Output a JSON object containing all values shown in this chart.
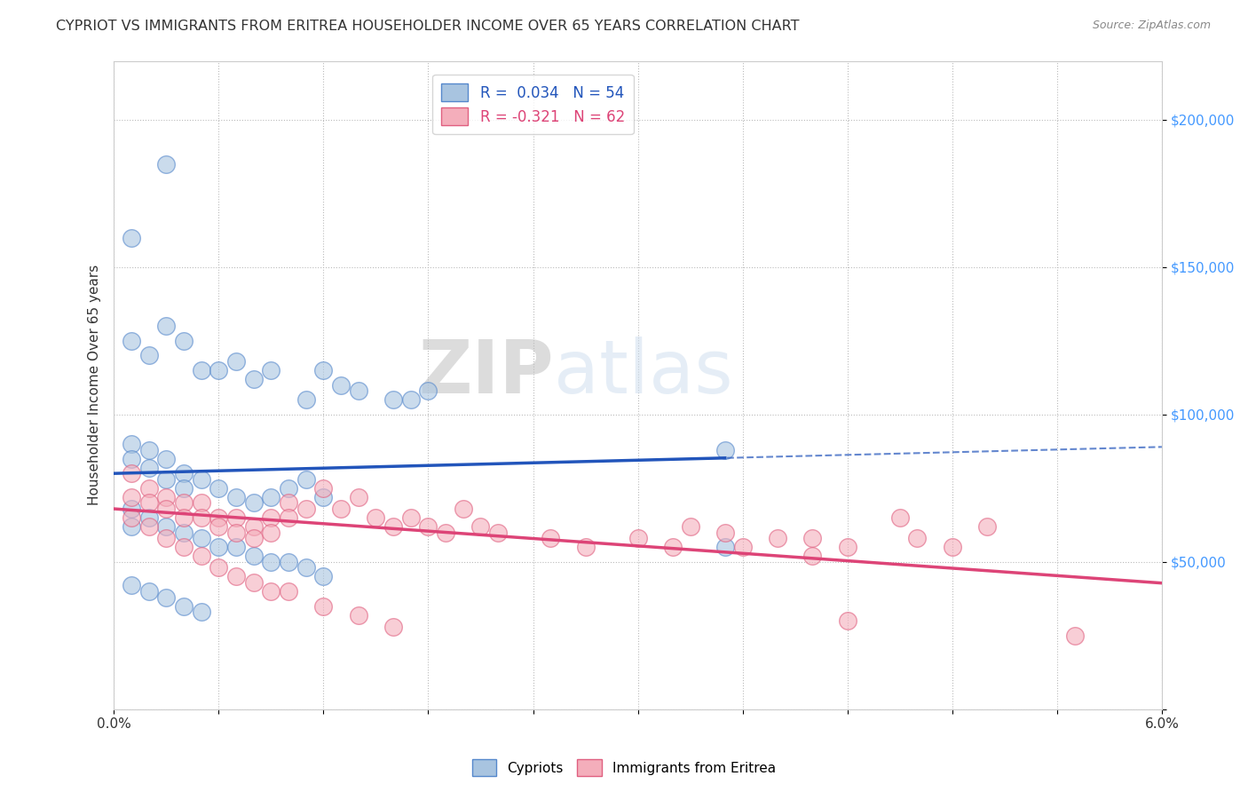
{
  "title": "CYPRIOT VS IMMIGRANTS FROM ERITREA HOUSEHOLDER INCOME OVER 65 YEARS CORRELATION CHART",
  "source": "Source: ZipAtlas.com",
  "ylabel": "Householder Income Over 65 years",
  "xlim": [
    0.0,
    0.06
  ],
  "ylim": [
    0,
    220000
  ],
  "xticks": [
    0.0,
    0.006,
    0.012,
    0.018,
    0.024,
    0.03,
    0.036,
    0.042,
    0.048,
    0.054,
    0.06
  ],
  "xticklabels": [
    "0.0%",
    "",
    "",
    "",
    "",
    "",
    "",
    "",
    "",
    "",
    "6.0%"
  ],
  "ytick_positions": [
    0,
    50000,
    100000,
    150000,
    200000
  ],
  "ytick_labels": [
    "",
    "$50,000",
    "$100,000",
    "$150,000",
    "$200,000"
  ],
  "legend_blue_text": "R =  0.034   N = 54",
  "legend_pink_text": "R = -0.321   N = 62",
  "blue_color": "#A8C4E0",
  "pink_color": "#F4AEBB",
  "blue_edge_color": "#5588CC",
  "pink_edge_color": "#E06080",
  "blue_line_color": "#2255BB",
  "pink_line_color": "#DD4477",
  "watermark_zip": "ZIP",
  "watermark_atlas": "atlas",
  "blue_line_solid_end": 0.035,
  "blue_intercept": 80000,
  "blue_slope": 150000,
  "pink_intercept": 68000,
  "pink_slope": -420000,
  "blue_scatter_x": [
    0.001,
    0.003,
    0.001,
    0.002,
    0.003,
    0.004,
    0.005,
    0.006,
    0.007,
    0.008,
    0.009,
    0.011,
    0.012,
    0.013,
    0.014,
    0.016,
    0.017,
    0.018,
    0.001,
    0.001,
    0.002,
    0.002,
    0.003,
    0.003,
    0.004,
    0.004,
    0.005,
    0.006,
    0.007,
    0.008,
    0.009,
    0.01,
    0.011,
    0.012,
    0.001,
    0.001,
    0.002,
    0.003,
    0.004,
    0.005,
    0.006,
    0.007,
    0.008,
    0.009,
    0.01,
    0.011,
    0.012,
    0.035,
    0.035,
    0.001,
    0.002,
    0.003,
    0.004,
    0.005
  ],
  "blue_scatter_y": [
    160000,
    185000,
    125000,
    120000,
    130000,
    125000,
    115000,
    115000,
    118000,
    112000,
    115000,
    105000,
    115000,
    110000,
    108000,
    105000,
    105000,
    108000,
    90000,
    85000,
    88000,
    82000,
    85000,
    78000,
    80000,
    75000,
    78000,
    75000,
    72000,
    70000,
    72000,
    75000,
    78000,
    72000,
    68000,
    62000,
    65000,
    62000,
    60000,
    58000,
    55000,
    55000,
    52000,
    50000,
    50000,
    48000,
    45000,
    88000,
    55000,
    42000,
    40000,
    38000,
    35000,
    33000
  ],
  "pink_scatter_x": [
    0.001,
    0.001,
    0.002,
    0.002,
    0.003,
    0.003,
    0.004,
    0.004,
    0.005,
    0.005,
    0.006,
    0.006,
    0.007,
    0.007,
    0.008,
    0.008,
    0.009,
    0.009,
    0.01,
    0.01,
    0.011,
    0.012,
    0.013,
    0.014,
    0.015,
    0.016,
    0.017,
    0.018,
    0.019,
    0.02,
    0.021,
    0.022,
    0.025,
    0.027,
    0.03,
    0.032,
    0.033,
    0.035,
    0.036,
    0.038,
    0.04,
    0.04,
    0.042,
    0.045,
    0.046,
    0.048,
    0.05,
    0.001,
    0.002,
    0.003,
    0.004,
    0.005,
    0.006,
    0.007,
    0.008,
    0.009,
    0.01,
    0.012,
    0.014,
    0.016,
    0.055,
    0.042
  ],
  "pink_scatter_y": [
    80000,
    72000,
    75000,
    70000,
    72000,
    68000,
    70000,
    65000,
    70000,
    65000,
    65000,
    62000,
    65000,
    60000,
    62000,
    58000,
    65000,
    60000,
    70000,
    65000,
    68000,
    75000,
    68000,
    72000,
    65000,
    62000,
    65000,
    62000,
    60000,
    68000,
    62000,
    60000,
    58000,
    55000,
    58000,
    55000,
    62000,
    60000,
    55000,
    58000,
    58000,
    52000,
    55000,
    65000,
    58000,
    55000,
    62000,
    65000,
    62000,
    58000,
    55000,
    52000,
    48000,
    45000,
    43000,
    40000,
    40000,
    35000,
    32000,
    28000,
    25000,
    30000
  ]
}
